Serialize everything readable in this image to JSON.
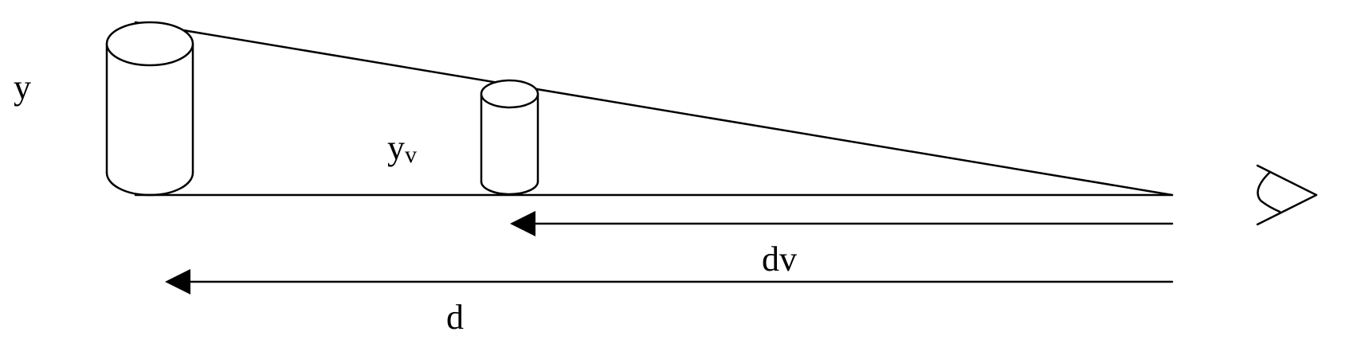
{
  "labels": {
    "y": "y",
    "yv_main": "y",
    "yv_sub": "v",
    "dv": "dv",
    "d": "d"
  },
  "colors": {
    "stroke": "#000000",
    "background": "#ffffff"
  },
  "icons": {
    "eye": "eye-icon"
  }
}
